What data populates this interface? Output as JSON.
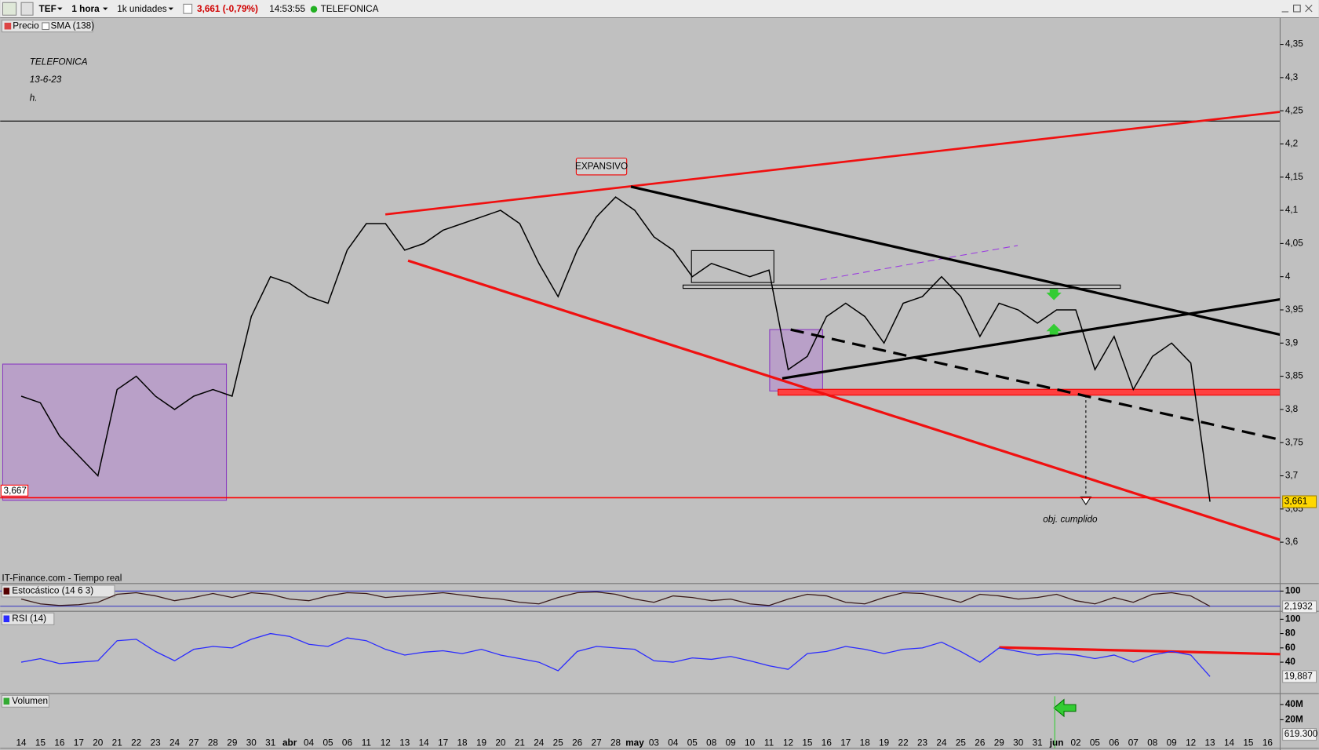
{
  "toolbar": {
    "symbol": "TEF",
    "interval": "1 hora",
    "units": "1k unidades",
    "change": "(-0,79%)",
    "time": "14:53:55",
    "name": "TELEFONICA"
  },
  "legend": {
    "sma": "SMA (138)"
  },
  "annotations": {
    "title": "TELEFONICA",
    "date": "13-6-23",
    "timeframe": "h.",
    "pattern": "EXPANSIVO",
    "target": "obj. cumplido",
    "source": "IT-Finance.com - Tiempo real"
  },
  "chart_data": [
    {
      "type": "line",
      "categories": [
        "14",
        "15",
        "16",
        "17",
        "20",
        "21",
        "22",
        "23",
        "24",
        "27",
        "28",
        "29",
        "30",
        "31",
        "abr",
        "04",
        "05",
        "06",
        "11",
        "12",
        "13",
        "14",
        "17",
        "18",
        "19",
        "20",
        "21",
        "24",
        "25",
        "26",
        "27",
        "28",
        "may",
        "03",
        "04",
        "05",
        "08",
        "09",
        "10",
        "11",
        "12",
        "15",
        "16",
        "17",
        "18",
        "19",
        "22",
        "23",
        "24",
        "25",
        "26",
        "29",
        "30",
        "31",
        "jun",
        "02",
        "05",
        "06",
        "07",
        "08",
        "09",
        "12",
        "13",
        "14",
        "15",
        "16"
      ],
      "series": [
        {
          "name": "Precio",
          "color": "#000000",
          "values": [
            3.82,
            3.81,
            3.76,
            3.73,
            3.7,
            3.83,
            3.85,
            3.82,
            3.8,
            3.82,
            3.83,
            3.82,
            3.94,
            4.0,
            3.99,
            3.97,
            3.96,
            4.04,
            4.08,
            4.08,
            4.04,
            4.05,
            4.07,
            4.08,
            4.09,
            4.1,
            4.08,
            4.02,
            3.97,
            4.04,
            4.09,
            4.12,
            4.1,
            4.06,
            4.04,
            4.0,
            4.02,
            4.01,
            4.0,
            4.01,
            3.86,
            3.88,
            3.94,
            3.96,
            3.94,
            3.9,
            3.96,
            3.97,
            4.0,
            3.97,
            3.91,
            3.96,
            3.95,
            3.93,
            3.95,
            3.95,
            3.86,
            3.91,
            3.83,
            3.88,
            3.9,
            3.87,
            3.661,
            null,
            null,
            null
          ]
        }
      ],
      "ylim": [
        3.539,
        4.389
      ],
      "yticks": [
        {
          "value": 4.35,
          "label": "4,35"
        },
        {
          "value": 4.3,
          "label": "4,3"
        },
        {
          "value": 4.25,
          "label": "4,25"
        },
        {
          "value": 4.2,
          "label": "4,2"
        },
        {
          "value": 4.15,
          "label": "4,15"
        },
        {
          "value": 4.1,
          "label": "4,1"
        },
        {
          "value": 4.05,
          "label": "4,05"
        },
        4,
        {
          "value": 3.95,
          "label": "3,95"
        },
        {
          "value": 3.9,
          "label": "3,9"
        },
        {
          "value": 3.85,
          "label": "3,85"
        },
        {
          "value": 3.8,
          "label": "3,8"
        },
        {
          "value": 3.75,
          "label": "3,75"
        },
        {
          "value": 3.7,
          "label": "3,7"
        },
        {
          "value": 3.65,
          "label": "3,65"
        },
        {
          "value": 3.6,
          "label": "3,6"
        }
      ],
      "reference_line": {
        "value": 3.667,
        "label": "3,667",
        "color": "#ff0000"
      },
      "last_value": {
        "value": 3.661,
        "label": "3,661"
      }
    },
    {
      "type": "line",
      "title": "Estocástico (14 6 3)",
      "series": [
        {
          "name": "Estocástico",
          "color": "#3a1a1a",
          "values": [
            50,
            20,
            10,
            15,
            30,
            80,
            90,
            70,
            40,
            60,
            85,
            60,
            90,
            80,
            50,
            40,
            70,
            90,
            85,
            60,
            70,
            80,
            90,
            75,
            60,
            50,
            30,
            20,
            60,
            90,
            95,
            80,
            50,
            30,
            70,
            60,
            40,
            50,
            20,
            10,
            50,
            80,
            70,
            30,
            20,
            60,
            90,
            85,
            60,
            30,
            80,
            70,
            50,
            60,
            80,
            40,
            20,
            60,
            30,
            80,
            90,
            70,
            5,
            null,
            null,
            null
          ]
        }
      ],
      "ylim": [
        -26,
        142
      ],
      "yticks": [
        100
      ],
      "last_value": {
        "value": 2.1932,
        "label": "2,1932"
      }
    },
    {
      "type": "line",
      "title": "RSI (14)",
      "series": [
        {
          "name": "RSI",
          "color": "#2a2aff",
          "values": [
            40,
            45,
            38,
            40,
            42,
            70,
            72,
            55,
            42,
            58,
            62,
            60,
            72,
            80,
            76,
            65,
            62,
            74,
            70,
            58,
            50,
            54,
            56,
            52,
            58,
            50,
            45,
            40,
            28,
            55,
            62,
            60,
            58,
            42,
            40,
            46,
            44,
            48,
            42,
            35,
            30,
            52,
            55,
            62,
            58,
            52,
            58,
            60,
            68,
            55,
            40,
            60,
            55,
            50,
            52,
            50,
            45,
            50,
            40,
            50,
            55,
            50,
            20,
            null,
            null,
            null
          ]
        }
      ],
      "ylim": [
        -4,
        110
      ],
      "yticks": [
        100,
        80,
        60,
        40
      ],
      "last_value": {
        "value": 19.887,
        "label": "19,887"
      }
    },
    {
      "type": "bar",
      "title": "Volumen",
      "ylim": [
        -17800000,
        53300000
      ],
      "yticks": [
        {
          "value": 40000000,
          "label": "40M"
        },
        {
          "value": 20000000,
          "label": "20M"
        }
      ],
      "last_value": {
        "value": 619300,
        "label": "619.300"
      }
    }
  ]
}
